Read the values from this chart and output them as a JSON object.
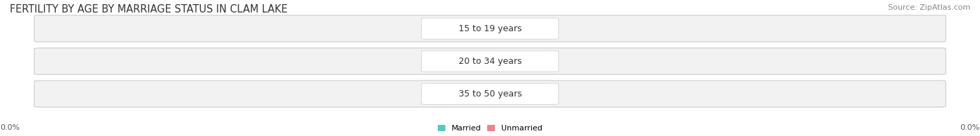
{
  "title": "FERTILITY BY AGE BY MARRIAGE STATUS IN CLAM LAKE",
  "source": "Source: ZipAtlas.com",
  "age_groups": [
    "15 to 19 years",
    "20 to 34 years",
    "35 to 50 years"
  ],
  "married_values": [
    0.0,
    0.0,
    0.0
  ],
  "unmarried_values": [
    0.0,
    0.0,
    0.0
  ],
  "married_color": "#5bc8c0",
  "unmarried_color": "#f08090",
  "bar_bg_color": "#f2f2f2",
  "bar_border_color": "#cccccc",
  "title_fontsize": 10.5,
  "source_fontsize": 8,
  "label_fontsize": 8,
  "badge_label_fontsize": 8,
  "age_label_fontsize": 9,
  "background_color": "#ffffff",
  "x_axis_labels": [
    "0.0%",
    "0.0%"
  ],
  "legend_labels": [
    "Married",
    "Unmarried"
  ]
}
